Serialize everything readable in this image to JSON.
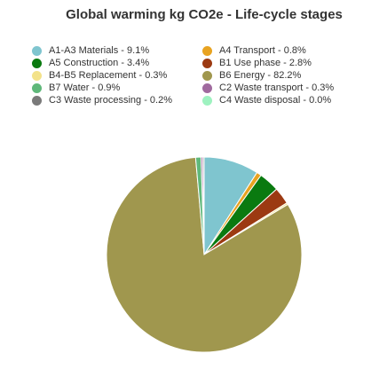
{
  "chart_data": {
    "type": "pie",
    "title": "Global warming kg CO2e - Life-cycle stages",
    "legend_position": "top",
    "slices": [
      {
        "label": "A1-A3 Materials - 9.1%",
        "name": "A1-A3 Materials",
        "value": 9.1,
        "color": "#7fc5cf"
      },
      {
        "label": "A4 Transport - 0.8%",
        "name": "A4 Transport",
        "value": 0.8,
        "color": "#e8a321"
      },
      {
        "label": "A5 Construction - 3.4%",
        "name": "A5 Construction",
        "value": 3.4,
        "color": "#0a7a10"
      },
      {
        "label": "B1 Use phase - 2.8%",
        "name": "B1 Use phase",
        "value": 2.8,
        "color": "#9c3a12"
      },
      {
        "label": "B4-B5 Replacement - 0.3%",
        "name": "B4-B5 Replacement",
        "value": 0.3,
        "color": "#f3e28a"
      },
      {
        "label": "B6 Energy - 82.2%",
        "name": "B6 Energy",
        "value": 82.2,
        "color": "#a0974e"
      },
      {
        "label": "B7 Water - 0.9%",
        "name": "B7 Water",
        "value": 0.9,
        "color": "#5fb87a"
      },
      {
        "label": "C2 Waste transport - 0.3%",
        "name": "C2 Waste transport",
        "value": 0.3,
        "color": "#a06a9e"
      },
      {
        "label": "C3 Waste processing - 0.2%",
        "name": "C3 Waste processing",
        "value": 0.2,
        "color": "#7a7a7a"
      },
      {
        "label": "C4 Waste disposal - 0.0%",
        "name": "C4 Waste disposal",
        "value": 0.0,
        "color": "#9ef2c0"
      }
    ]
  }
}
